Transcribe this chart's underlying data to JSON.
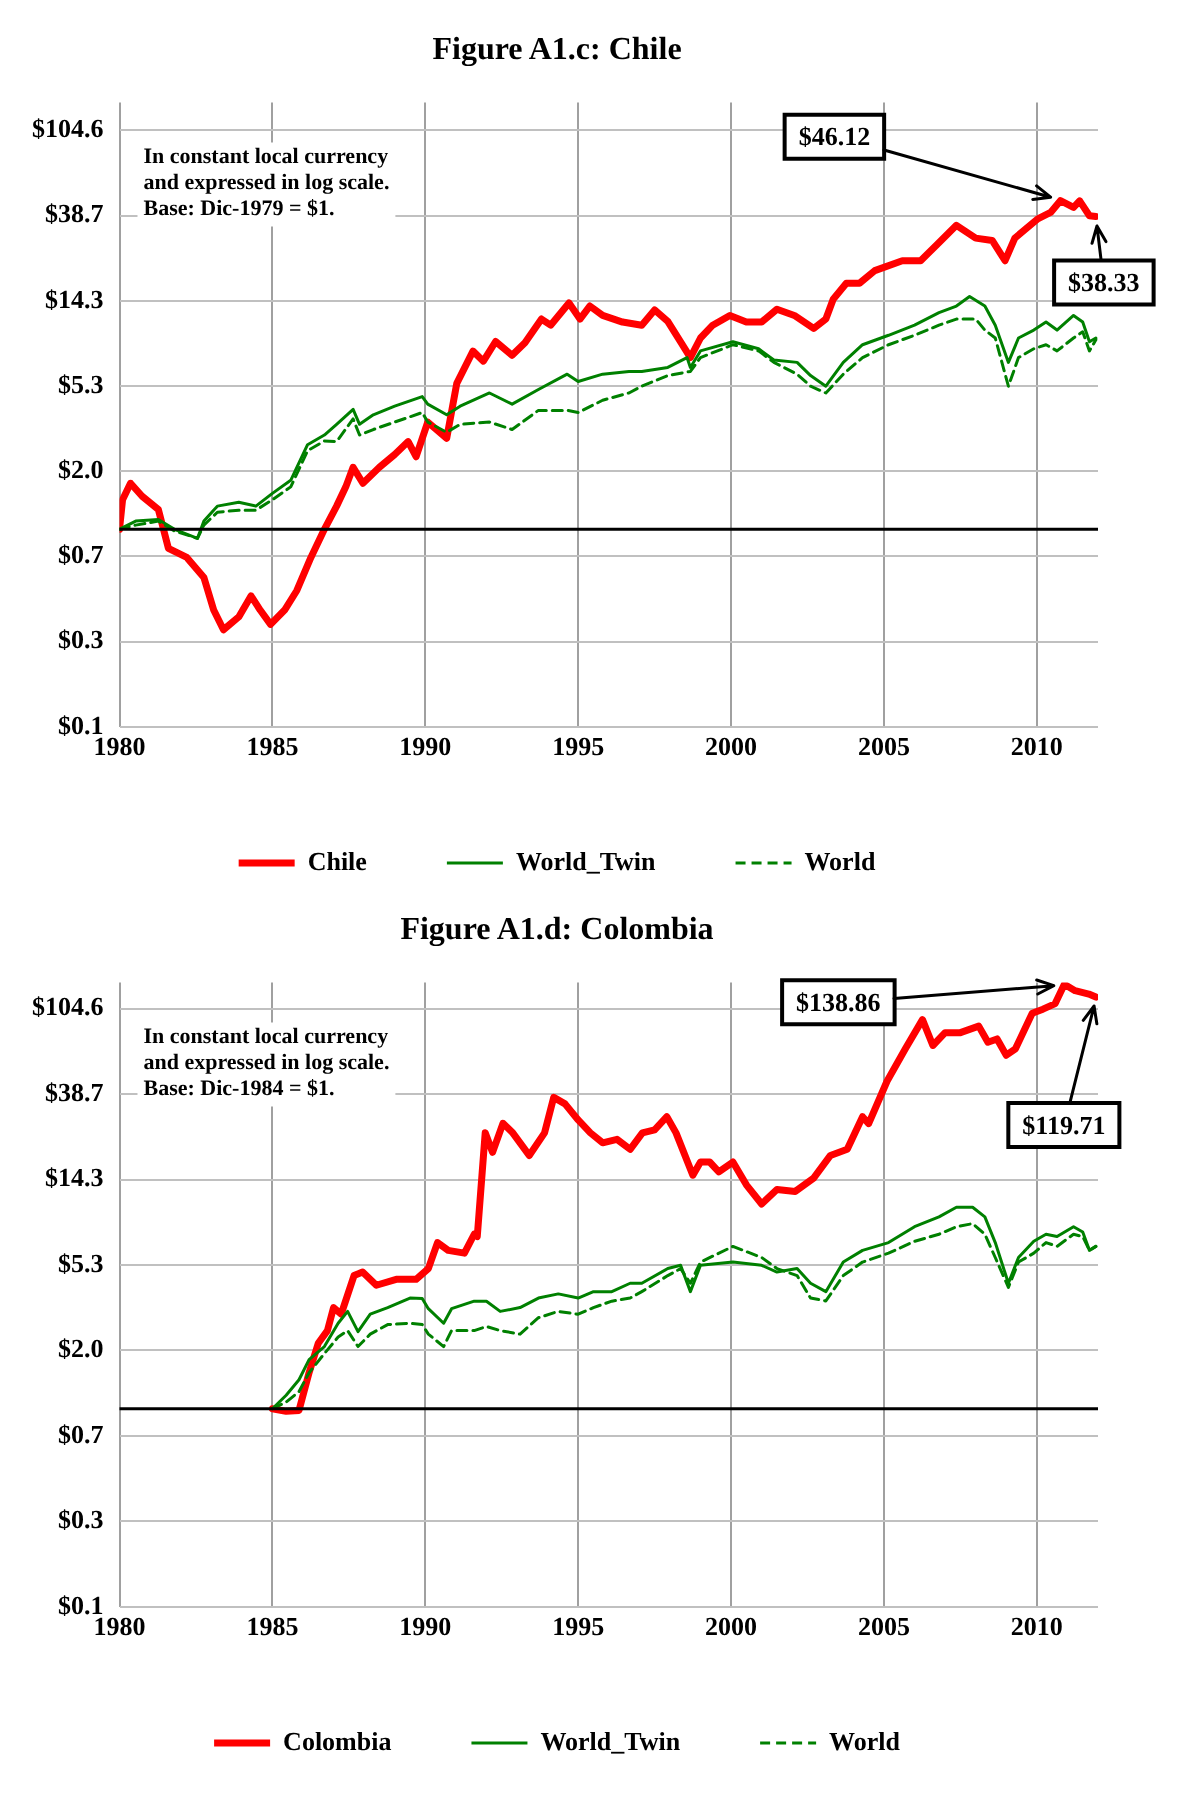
{
  "chart_data": [
    {
      "type": "line",
      "title": "Figure A1.c: Chile",
      "log": "y",
      "grid": true,
      "legend": "bottom",
      "xlim": [
        1980,
        2012
      ],
      "xticks": [
        1980,
        1985,
        1990,
        1995,
        2000,
        2005,
        2010
      ],
      "ylim": [
        0.1,
        145
      ],
      "yticks": [
        {
          "value": 0.1,
          "label": "$0.1"
        },
        {
          "value": 0.27,
          "label": "$0.3"
        },
        {
          "value": 0.729,
          "label": "$0.7"
        },
        {
          "value": 1.968,
          "label": "$2.0"
        },
        {
          "value": 5.314,
          "label": "$5.3"
        },
        {
          "value": 14.349,
          "label": "$14.3"
        },
        {
          "value": 38.742,
          "label": "$38.7"
        },
        {
          "value": 104.604,
          "label": "$104.6"
        }
      ],
      "ref_lines": [
        {
          "axis": "y",
          "value": 1,
          "color": "#000000"
        }
      ],
      "annotations": [
        "In constant local currency\nand expressed in log scale.\nBase: Dic-1979 = $1.",
        {
          "text": "$46.12",
          "x": 2010.77,
          "y": 46.12
        },
        {
          "text": "$38.33",
          "x": 2011.93,
          "y": 38.33
        }
      ],
      "series": [
        {
          "name": "Chile",
          "color": "#ff0000",
          "x": [
            1980.0,
            1980.1,
            1980.36,
            1980.74,
            1981.27,
            1981.6,
            1982.2,
            1982.76,
            1983.08,
            1983.4,
            1983.9,
            1984.3,
            1984.6,
            1984.94,
            1985.4,
            1985.8,
            1986.26,
            1986.7,
            1987.1,
            1987.4,
            1987.64,
            1987.96,
            1988.5,
            1989.0,
            1989.44,
            1989.7,
            1990.08,
            1990.7,
            1991.03,
            1991.56,
            1991.9,
            1992.3,
            1992.84,
            1993.26,
            1993.8,
            1994.1,
            1994.7,
            1995.06,
            1995.38,
            1995.8,
            1996.45,
            1997.08,
            1997.5,
            1997.93,
            1998.35,
            1998.67,
            1999.0,
            1999.4,
            1999.96,
            2000.5,
            2001.0,
            2001.5,
            2002.07,
            2002.7,
            2003.1,
            2003.34,
            2003.77,
            2004.2,
            2004.7,
            2005.6,
            2006.2,
            2006.73,
            2007.37,
            2008.0,
            2008.54,
            2008.96,
            2009.28,
            2010.03,
            2010.45,
            2010.77,
            2011.2,
            2011.4,
            2011.72,
            2011.93
          ],
          "values": [
            1.0,
            1.41,
            1.71,
            1.47,
            1.26,
            0.8,
            0.72,
            0.57,
            0.39,
            0.31,
            0.36,
            0.46,
            0.39,
            0.33,
            0.39,
            0.49,
            0.72,
            1.0,
            1.31,
            1.64,
            2.06,
            1.71,
            2.06,
            2.39,
            2.78,
            2.33,
            3.49,
            2.89,
            5.48,
            7.98,
            7.1,
            8.93,
            7.6,
            8.8,
            11.6,
            10.8,
            14.0,
            11.6,
            13.5,
            12.1,
            11.2,
            10.8,
            12.9,
            11.3,
            8.9,
            7.4,
            9.3,
            10.8,
            12.1,
            11.2,
            11.2,
            13.0,
            12.1,
            10.4,
            11.6,
            14.6,
            17.6,
            17.6,
            20.4,
            22.9,
            22.9,
            27.6,
            34.6,
            29.8,
            29.0,
            22.9,
            29.8,
            37.3,
            40.2,
            46.12,
            42.6,
            46.0,
            38.7,
            38.33
          ]
        },
        {
          "name": "World_Twin",
          "color": "#008000",
          "x": [
            1980,
            1980.53,
            1981.27,
            1981.8,
            1982.55,
            1982.76,
            1983.2,
            1983.9,
            1984.46,
            1985,
            1985.6,
            1986.15,
            1986.7,
            1987.1,
            1987.64,
            1987.85,
            1988.3,
            1989,
            1989.9,
            1990.08,
            1990.7,
            1991.14,
            1992.1,
            1992.84,
            1993.7,
            1994.64,
            1995,
            1995.8,
            1996.66,
            1997.08,
            1997.93,
            1998.56,
            1998.67,
            1999,
            2000.06,
            2000.9,
            2001.4,
            2002.16,
            2002.6,
            2003.1,
            2003.67,
            2004.3,
            2005.15,
            2006,
            2006.8,
            2007.37,
            2007.8,
            2008.3,
            2008.64,
            2009.07,
            2009.4,
            2009.9,
            2010.3,
            2010.66,
            2011.2,
            2011.5,
            2011.72,
            2011.93
          ],
          "values": [
            1,
            1.1,
            1.12,
            1,
            0.9,
            1.1,
            1.31,
            1.37,
            1.31,
            1.52,
            1.77,
            2.68,
            3,
            3.4,
            4.05,
            3.4,
            3.8,
            4.2,
            4.7,
            4.3,
            3.8,
            4.2,
            4.9,
            4.3,
            5.1,
            6.1,
            5.6,
            6.1,
            6.3,
            6.3,
            6.6,
            7.4,
            6.6,
            8,
            8.9,
            8.2,
            7.2,
            7,
            6,
            5.3,
            7,
            8.6,
            9.6,
            10.8,
            12.5,
            13.5,
            15.1,
            13.5,
            10.8,
            7,
            9.3,
            10.2,
            11.2,
            10.2,
            12.1,
            11.2,
            8.9,
            9.3
          ]
        },
        {
          "name": "World",
          "color": "#008000",
          "line_style": "dashed",
          "x": [
            1980,
            1980.53,
            1981.27,
            1981.8,
            1982.55,
            1982.76,
            1983.2,
            1983.9,
            1984.46,
            1985,
            1985.6,
            1986.15,
            1986.7,
            1987.1,
            1987.64,
            1987.85,
            1988.3,
            1989,
            1989.9,
            1990.08,
            1990.7,
            1991.14,
            1992.1,
            1992.84,
            1993.7,
            1994.64,
            1995,
            1995.8,
            1996.66,
            1997.08,
            1997.93,
            1998.67,
            1999,
            2000.06,
            2000.9,
            2001.4,
            2002.16,
            2002.6,
            2003.1,
            2003.67,
            2004.3,
            2005.15,
            2006,
            2006.8,
            2007.37,
            2008,
            2008.3,
            2008.64,
            2009.07,
            2009.4,
            2009.9,
            2010.3,
            2010.66,
            2011.2,
            2011.5,
            2011.72,
            2011.93
          ],
          "values": [
            1,
            1.05,
            1.1,
            0.98,
            0.9,
            1.05,
            1.22,
            1.25,
            1.25,
            1.41,
            1.64,
            2.5,
            2.8,
            2.78,
            3.62,
            3,
            3.2,
            3.49,
            3.9,
            3.49,
            3.1,
            3.4,
            3.49,
            3.2,
            4,
            4,
            3.9,
            4.5,
            4.9,
            5.3,
            6,
            6.3,
            7.4,
            8.6,
            8,
            7,
            6.1,
            5.3,
            4.9,
            6.1,
            7.4,
            8.6,
            9.6,
            10.8,
            11.6,
            11.6,
            10.2,
            9.3,
            5.3,
            7.4,
            8.2,
            8.6,
            8,
            9.3,
            10,
            8,
            9.1
          ]
        }
      ]
    },
    {
      "type": "line",
      "title": "Figure A1.d: Colombia",
      "log": "y",
      "grid": true,
      "legend": "bottom",
      "xlim": [
        1980,
        2012
      ],
      "xticks": [
        1980,
        1985,
        1990,
        1995,
        2000,
        2005,
        2010
      ],
      "ylim": [
        0.1,
        142
      ],
      "yticks": [
        {
          "value": 0.1,
          "label": "$0.1"
        },
        {
          "value": 0.27,
          "label": "$0.3"
        },
        {
          "value": 0.729,
          "label": "$0.7"
        },
        {
          "value": 1.968,
          "label": "$2.0"
        },
        {
          "value": 5.314,
          "label": "$5.3"
        },
        {
          "value": 14.349,
          "label": "$14.3"
        },
        {
          "value": 38.742,
          "label": "$38.7"
        },
        {
          "value": 104.604,
          "label": "$104.6"
        }
      ],
      "ref_lines": [
        {
          "axis": "y",
          "value": 1,
          "color": "#000000"
        }
      ],
      "annotations": [
        "In constant local currency\nand expressed in log scale.\nBase: Dic-1984 = $1.",
        {
          "text": "$138.86",
          "x": 2010.9,
          "y": 138.86
        },
        {
          "text": "$119.71",
          "x": 2011.93,
          "y": 119.71
        }
      ],
      "series": [
        {
          "name": "Colombia",
          "color": "#ff0000",
          "x": [
            1985,
            1985.45,
            1985.87,
            1986.2,
            1986.5,
            1986.8,
            1987,
            1987.25,
            1987.46,
            1987.67,
            1987.95,
            1988.4,
            1989.05,
            1989.7,
            1990.1,
            1990.4,
            1990.75,
            1991.28,
            1991.6,
            1991.7,
            1991.96,
            1992.2,
            1992.54,
            1992.86,
            1993.4,
            1993.9,
            1994.2,
            1994.57,
            1995,
            1995.4,
            1995.8,
            1996.27,
            1996.7,
            1997.1,
            1997.5,
            1997.9,
            1998.2,
            1998.75,
            1999,
            1999.3,
            1999.6,
            2000.06,
            2000.5,
            2001,
            2001.5,
            2002.1,
            2002.7,
            2003.25,
            2003.8,
            2004.3,
            2004.5,
            2005.1,
            2005.7,
            2006.26,
            2006.6,
            2007,
            2007.5,
            2008.1,
            2008.4,
            2008.7,
            2009,
            2009.3,
            2009.85,
            2010.2,
            2010.6,
            2010.9,
            2011.25,
            2011.7,
            2011.93
          ],
          "values": [
            1,
            0.97,
            0.98,
            1.52,
            2.14,
            2.48,
            3.24,
            3,
            3.76,
            4.7,
            4.9,
            4.2,
            4.5,
            4.5,
            5.1,
            6.9,
            6.3,
            6.1,
            7.6,
            7.4,
            24.7,
            19.7,
            27.6,
            24.7,
            19,
            24.7,
            37.3,
            34.6,
            28.7,
            24.7,
            22,
            22.9,
            20.4,
            24.7,
            25.6,
            29.8,
            24.7,
            15.1,
            17.6,
            17.6,
            15.7,
            17.6,
            13.5,
            10.8,
            12.8,
            12.5,
            14.6,
            19,
            20.4,
            29.8,
            27.5,
            45,
            65.6,
            92.1,
            68.2,
            79.2,
            79.2,
            85.4,
            70.8,
            73.6,
            60.9,
            65.6,
            99.3,
            104,
            111,
            138.86,
            129,
            124,
            119.71
          ]
        },
        {
          "name": "World_Twin",
          "color": "#008000",
          "x": [
            1985,
            1985.45,
            1985.87,
            1986.2,
            1986.7,
            1987.15,
            1987.46,
            1987.8,
            1988.2,
            1988.77,
            1989.5,
            1989.9,
            1990.1,
            1990.6,
            1990.86,
            1991.6,
            1992,
            1992.45,
            1993.1,
            1993.7,
            1994.35,
            1995,
            1995.5,
            1996.1,
            1996.7,
            1997.08,
            1997.93,
            1998.35,
            1998.67,
            1999,
            2000.06,
            2001,
            2001.5,
            2002.16,
            2002.6,
            2003.1,
            2003.67,
            2004.3,
            2005.15,
            2006,
            2006.8,
            2007.37,
            2007.9,
            2008.3,
            2008.64,
            2009.07,
            2009.4,
            2009.9,
            2010.3,
            2010.66,
            2011.2,
            2011.5,
            2011.72,
            2011.93
          ],
          "values": [
            1,
            1.17,
            1.4,
            1.77,
            2.06,
            2.7,
            3.1,
            2.45,
            3,
            3.24,
            3.62,
            3.6,
            3.2,
            2.7,
            3.2,
            3.49,
            3.49,
            3.1,
            3.24,
            3.62,
            3.8,
            3.62,
            3.9,
            3.9,
            4.3,
            4.3,
            5.1,
            5.3,
            3.9,
            5.3,
            5.5,
            5.3,
            4.9,
            5.1,
            4.3,
            3.9,
            5.5,
            6.3,
            6.9,
            8.3,
            9.3,
            10.4,
            10.4,
            9.3,
            6.9,
            4.3,
            5.8,
            7,
            7.6,
            7.4,
            8.3,
            7.8,
            6.3,
            6.6
          ]
        },
        {
          "name": "World",
          "color": "#008000",
          "line_style": "dashed",
          "x": [
            1985,
            1985.45,
            1985.87,
            1986.2,
            1986.7,
            1987.15,
            1987.46,
            1987.8,
            1988.2,
            1988.77,
            1989.5,
            1989.9,
            1990.1,
            1990.6,
            1990.86,
            1991.6,
            1992,
            1992.45,
            1993.1,
            1993.7,
            1994.35,
            1995,
            1995.5,
            1996.1,
            1996.7,
            1997.08,
            1997.93,
            1998.35,
            1998.67,
            1999,
            2000.06,
            2001,
            2001.5,
            2002.16,
            2002.6,
            2003.1,
            2003.67,
            2004.3,
            2005.15,
            2006,
            2006.8,
            2007.37,
            2007.9,
            2008.3,
            2008.64,
            2009.07,
            2009.4,
            2009.9,
            2010.3,
            2010.66,
            2011.2,
            2011.5,
            2011.72,
            2011.93
          ],
          "values": [
            1,
            1.08,
            1.22,
            1.52,
            1.9,
            2.3,
            2.48,
            2.06,
            2.38,
            2.66,
            2.7,
            2.66,
            2.38,
            2.06,
            2.48,
            2.48,
            2.6,
            2.48,
            2.38,
            2.88,
            3.1,
            3.0,
            3.24,
            3.49,
            3.62,
            3.9,
            4.7,
            5.1,
            4.3,
            5.5,
            6.6,
            5.8,
            5.1,
            4.7,
            3.62,
            3.5,
            4.7,
            5.5,
            6.1,
            7.0,
            7.6,
            8.3,
            8.6,
            7.6,
            5.8,
            4.1,
            5.5,
            6.1,
            6.9,
            6.6,
            7.6,
            7.4,
            6.3,
            6.6
          ]
        }
      ]
    }
  ]
}
